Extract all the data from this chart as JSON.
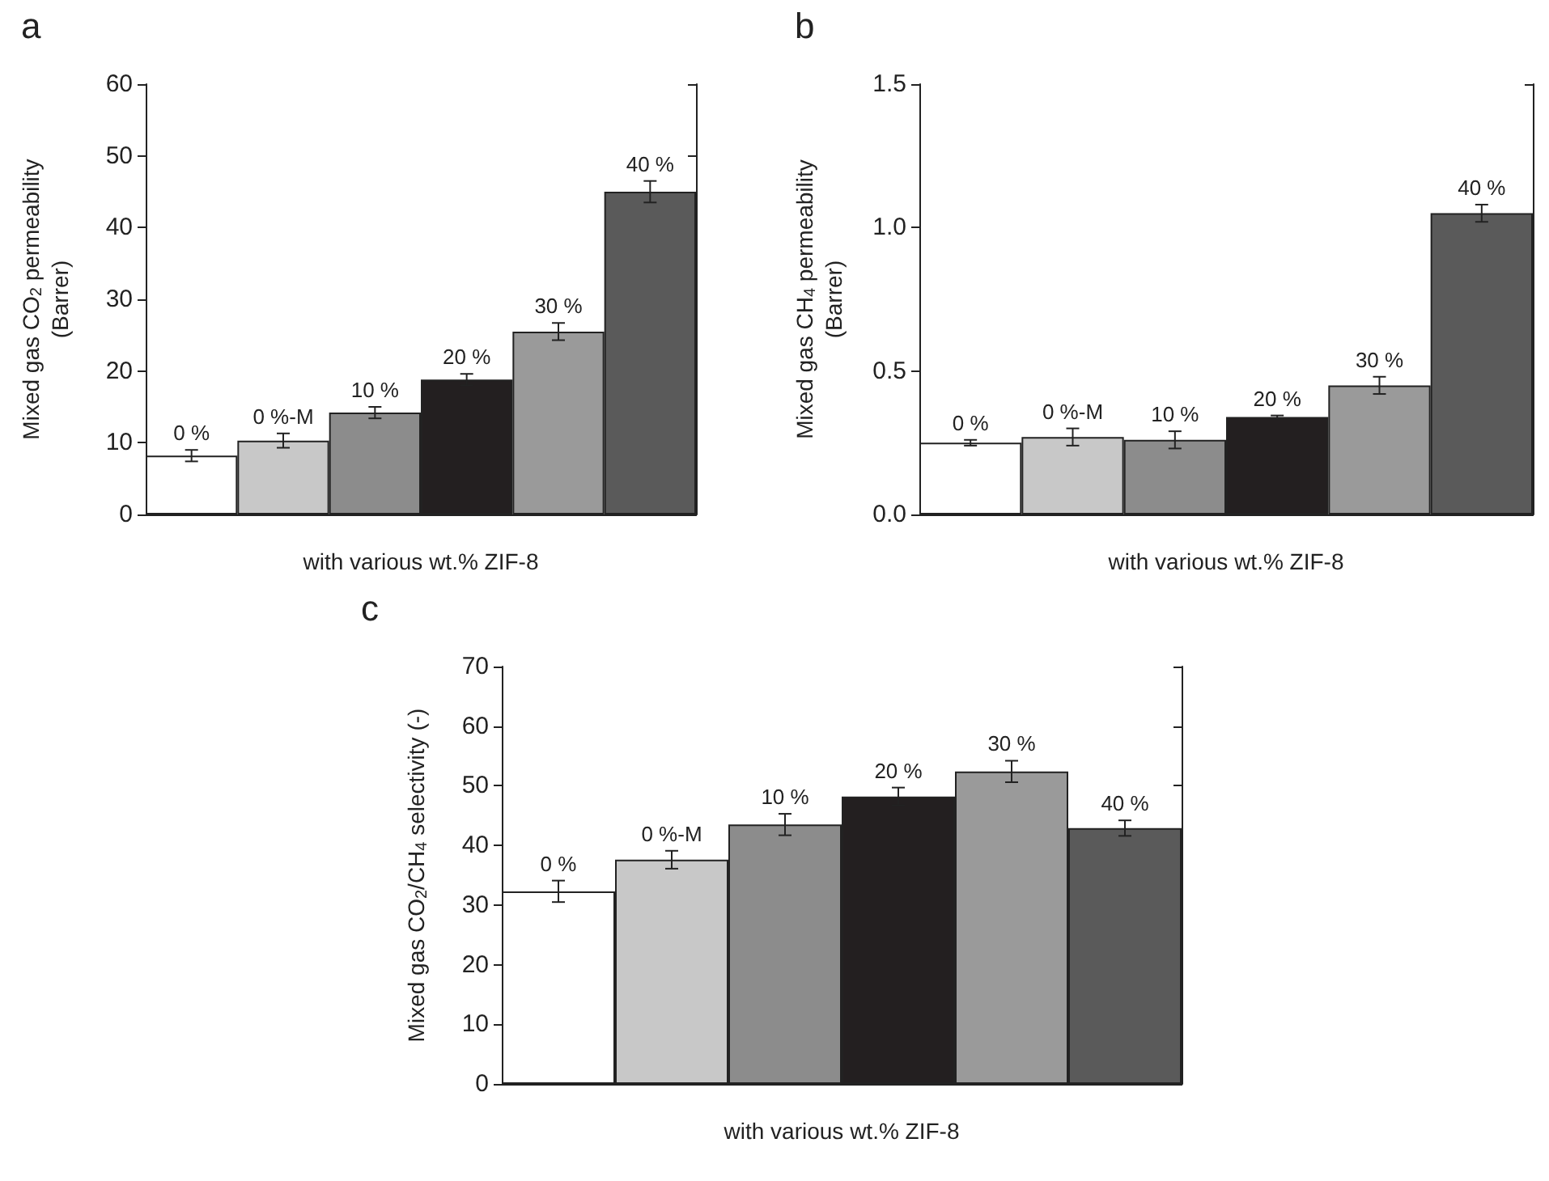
{
  "chart_data": [
    {
      "type": "bar",
      "title": "a",
      "xlabel": "with various wt.% ZIF-8",
      "ylabel": "Mixed gas CO$_{2}$ permeability\n(Barrer)",
      "categories": [
        "0 %",
        "0 %-M",
        "10 %",
        "20 %",
        "30 %",
        "40 %"
      ],
      "values": [
        8.2,
        10.3,
        14.2,
        18.8,
        25.5,
        45
      ],
      "errors": [
        0.8,
        1,
        0.8,
        0.8,
        1.2,
        1.5
      ],
      "colors": [
        "#ffffff",
        "#c8c8c8",
        "#8c8c8c",
        "#231f20",
        "#9a9a9a",
        "#5a5a5a"
      ],
      "ylim": [
        0,
        60
      ],
      "yticks": [
        0,
        10,
        20,
        30,
        40,
        50,
        60
      ],
      "grid": false
    },
    {
      "type": "bar",
      "title": "b",
      "xlabel": "with various wt.% ZIF-8",
      "ylabel": "Mixed gas CH$_{4}$ permeability\n(Barrer)",
      "categories": [
        "0 %",
        "0 %-M",
        "10 %",
        "20 %",
        "30 %",
        "40 %"
      ],
      "values": [
        0.25,
        0.27,
        0.26,
        0.34,
        0.45,
        1.05
      ],
      "errors": [
        0.01,
        0.03,
        0.03,
        0.005,
        0.03,
        0.03
      ],
      "colors": [
        "#ffffff",
        "#c8c8c8",
        "#8c8c8c",
        "#231f20",
        "#9a9a9a",
        "#5a5a5a"
      ],
      "ylim": [
        0,
        1.5
      ],
      "yticks": [
        {
          "value": 0,
          "label": "0.0"
        },
        {
          "value": 0.5,
          "label": "0.5"
        },
        {
          "value": 1,
          "label": "1.0"
        },
        {
          "value": 1.5,
          "label": "1.5"
        }
      ],
      "grid": false
    },
    {
      "type": "bar",
      "title": "c",
      "xlabel": "with various wt.% ZIF-8",
      "ylabel": "Mixed gas CO$_{2}$/CH$_{4}$ selectivity (-)",
      "categories": [
        "0 %",
        "0 %-M",
        "10 %",
        "20 %",
        "30 %",
        "40 %"
      ],
      "values": [
        32.3,
        37.6,
        43.5,
        48.2,
        52.4,
        42.9
      ],
      "errors": [
        1.8,
        1.5,
        1.8,
        1.5,
        1.8,
        1.3
      ],
      "colors": [
        "#ffffff",
        "#c8c8c8",
        "#8c8c8c",
        "#231f20",
        "#9a9a9a",
        "#5a5a5a"
      ],
      "ylim": [
        0,
        70
      ],
      "yticks": [
        0,
        10,
        20,
        30,
        40,
        50,
        60,
        70
      ],
      "grid": false
    }
  ]
}
